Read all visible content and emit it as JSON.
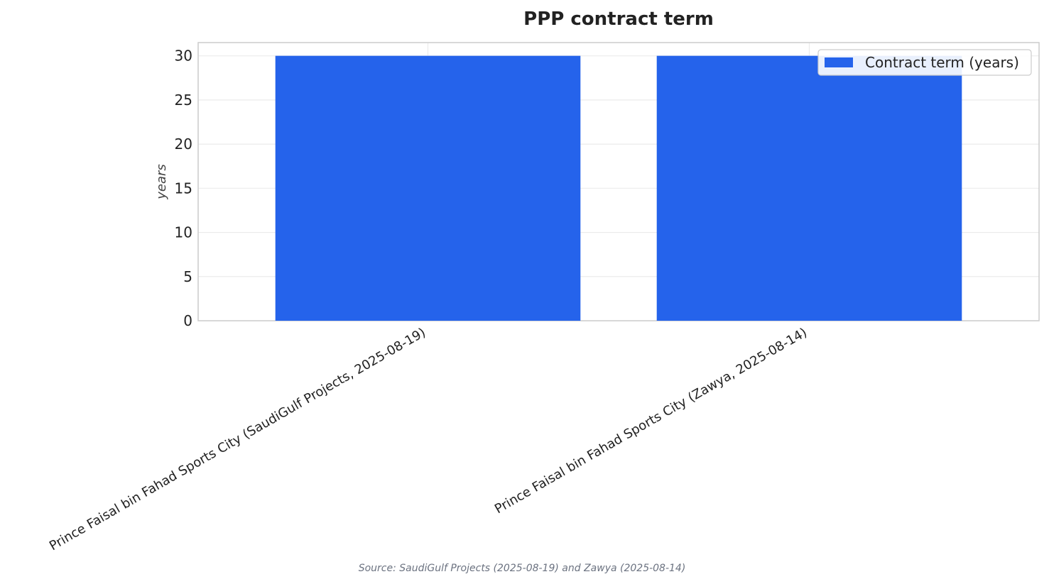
{
  "chart_data": {
    "type": "bar",
    "title": "PPP contract term",
    "xlabel": "",
    "ylabel": "years",
    "categories": [
      "Prince Faisal bin Fahad Sports City (SaudiGulf Projects, 2025-08-19)",
      "Prince Faisal bin Fahad Sports City (Zawya, 2025-08-14)"
    ],
    "series": [
      {
        "name": "Contract term (years)",
        "values": [
          30,
          30
        ],
        "color": "#2563eb"
      }
    ],
    "ylim": [
      0,
      31.5
    ],
    "yticks": [
      0,
      5,
      10,
      15,
      20,
      25,
      30
    ],
    "grid": true,
    "legend_position": "top-right",
    "source": "Source: SaudiGulf Projects (2025-08-19) and Zawya (2025-08-14)"
  }
}
